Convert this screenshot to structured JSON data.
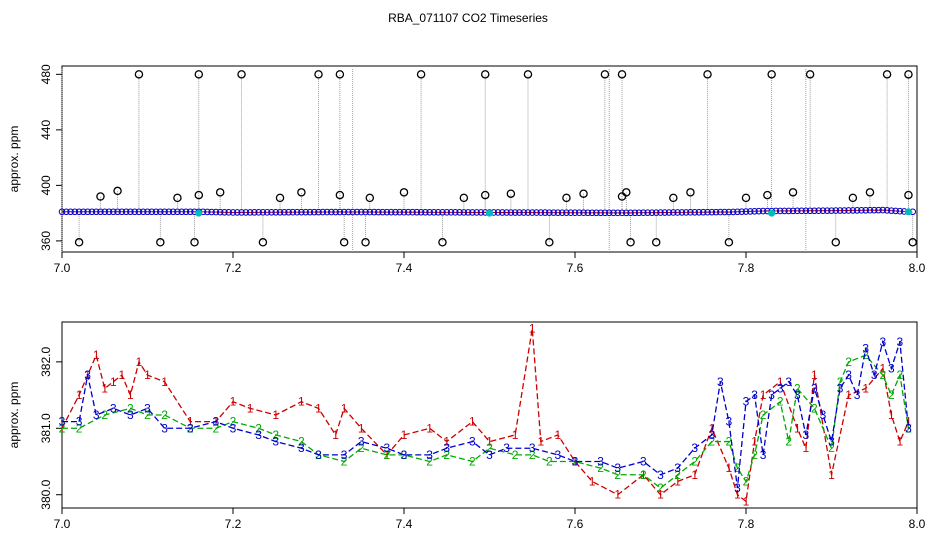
{
  "chart_data": [
    {
      "type": "scatter",
      "title": "RBA_071107  CO2 Timeseries",
      "xlabel": "",
      "ylabel": "approx. ppm",
      "xlim": [
        7.0,
        8.0
      ],
      "ylim": [
        352,
        486
      ],
      "xticks": [
        "7.0",
        "7.2",
        "7.4",
        "7.6",
        "7.8",
        "8.0"
      ],
      "yticks": [
        "360",
        "400",
        "440",
        "480"
      ],
      "grid": false,
      "legend": "none",
      "baseline": {
        "x": [
          7.0,
          7.1,
          7.16,
          7.2,
          7.33,
          7.5,
          7.66,
          7.78,
          7.82,
          7.9,
          7.96,
          7.99
        ],
        "y": [
          381.0,
          381.0,
          381.0,
          380.5,
          380.8,
          380.5,
          380.2,
          380.8,
          381.5,
          381.8,
          382.2,
          381.0
        ]
      },
      "cyan_points": {
        "x": [
          7.16,
          7.5,
          7.83,
          7.99
        ],
        "y": [
          380.0,
          380.0,
          380.0,
          381.0
        ]
      },
      "outliers_high": {
        "x": [
          7.09,
          7.16,
          7.21,
          7.3,
          7.325,
          7.42,
          7.495,
          7.545,
          7.635,
          7.655,
          7.755,
          7.83,
          7.875,
          7.965,
          7.99
        ],
        "y": [
          480,
          480,
          480,
          480,
          480,
          480,
          480,
          480,
          480,
          480,
          480,
          480,
          480,
          480,
          480
        ]
      },
      "outliers_low": {
        "x": [
          7.02,
          7.115,
          7.155,
          7.235,
          7.33,
          7.355,
          7.445,
          7.57,
          7.665,
          7.695,
          7.78,
          7.905,
          7.995
        ],
        "y": [
          359,
          359,
          359,
          359,
          359,
          359,
          359,
          359,
          359,
          359,
          359,
          359,
          359
        ]
      },
      "outliers_mid": {
        "x": [
          7.045,
          7.065,
          7.135,
          7.16,
          7.185,
          7.255,
          7.28,
          7.325,
          7.36,
          7.4,
          7.47,
          7.495,
          7.525,
          7.59,
          7.61,
          7.655,
          7.66,
          7.715,
          7.735,
          7.8,
          7.825,
          7.855,
          7.925,
          7.945,
          7.99
        ],
        "y": [
          392,
          396,
          391,
          393,
          395,
          391,
          395,
          393,
          391,
          395,
          391,
          393,
          394,
          391,
          394,
          392,
          395,
          391,
          395,
          391,
          393,
          395,
          391,
          395,
          393
        ]
      },
      "colors": {
        "outlier": "#000000",
        "baseline": "#0000cc",
        "red": "#cc0000",
        "cyan": "#00bbbb",
        "green": "#00aa00",
        "spike": "#888888"
      }
    },
    {
      "type": "line",
      "title": "",
      "xlabel": "",
      "ylabel": "approx. ppm",
      "xlim": [
        7.0,
        8.0
      ],
      "ylim": [
        379.8,
        382.6
      ],
      "xticks": [
        "7.0",
        "7.2",
        "7.4",
        "7.6",
        "7.8",
        "8.0"
      ],
      "yticks": [
        "380.0",
        "381.0",
        "382.0"
      ],
      "grid": false,
      "legend": "none",
      "series": [
        {
          "marker": "1",
          "color": "#cc0000",
          "x": [
            7.0,
            7.02,
            7.03,
            7.04,
            7.05,
            7.06,
            7.07,
            7.08,
            7.09,
            7.1,
            7.12,
            7.15,
            7.18,
            7.2,
            7.22,
            7.25,
            7.28,
            7.3,
            7.32,
            7.33,
            7.35,
            7.38,
            7.4,
            7.43,
            7.45,
            7.48,
            7.5,
            7.53,
            7.55,
            7.56,
            7.58,
            7.6,
            7.62,
            7.65,
            7.68,
            7.7,
            7.72,
            7.74,
            7.76,
            7.78,
            7.79,
            7.8,
            7.81,
            7.82,
            7.84,
            7.86,
            7.87,
            7.88,
            7.9,
            7.92,
            7.94,
            7.96,
            7.97,
            7.98,
            7.99
          ],
          "y": [
            381.0,
            381.5,
            381.8,
            382.1,
            381.6,
            381.7,
            381.8,
            381.5,
            382.0,
            381.8,
            381.7,
            381.1,
            381.1,
            381.4,
            381.3,
            381.2,
            381.4,
            381.3,
            380.9,
            381.3,
            381.0,
            380.6,
            380.9,
            381.0,
            380.8,
            381.1,
            380.8,
            380.9,
            382.5,
            380.8,
            380.9,
            380.5,
            380.2,
            380.0,
            380.3,
            380.0,
            380.2,
            380.3,
            381.0,
            380.4,
            380.0,
            379.9,
            380.8,
            381.5,
            381.7,
            381.0,
            380.7,
            381.8,
            380.3,
            381.5,
            381.6,
            381.9,
            381.2,
            380.8,
            381.1
          ]
        },
        {
          "marker": "2",
          "color": "#00aa00",
          "x": [
            7.0,
            7.02,
            7.05,
            7.08,
            7.1,
            7.12,
            7.15,
            7.18,
            7.2,
            7.23,
            7.25,
            7.28,
            7.3,
            7.33,
            7.35,
            7.38,
            7.4,
            7.43,
            7.45,
            7.48,
            7.5,
            7.53,
            7.55,
            7.57,
            7.6,
            7.63,
            7.65,
            7.68,
            7.7,
            7.72,
            7.74,
            7.76,
            7.78,
            7.79,
            7.8,
            7.81,
            7.82,
            7.84,
            7.85,
            7.86,
            7.88,
            7.9,
            7.91,
            7.92,
            7.94,
            7.96,
            7.97,
            7.98,
            7.99
          ],
          "y": [
            381.0,
            381.0,
            381.2,
            381.3,
            381.2,
            381.2,
            381.0,
            381.0,
            381.1,
            381.0,
            380.9,
            380.8,
            380.6,
            380.5,
            380.7,
            380.6,
            380.6,
            380.5,
            380.6,
            380.5,
            380.7,
            380.6,
            380.6,
            380.5,
            380.5,
            380.4,
            380.3,
            380.3,
            380.1,
            380.3,
            380.5,
            380.8,
            380.8,
            380.4,
            380.2,
            380.6,
            381.2,
            381.4,
            380.8,
            381.6,
            381.3,
            380.7,
            381.7,
            382.0,
            382.1,
            381.8,
            381.5,
            381.8,
            381.0
          ]
        },
        {
          "marker": "3",
          "color": "#0000cc",
          "x": [
            7.0,
            7.02,
            7.03,
            7.04,
            7.06,
            7.08,
            7.1,
            7.12,
            7.15,
            7.18,
            7.2,
            7.23,
            7.25,
            7.28,
            7.3,
            7.33,
            7.35,
            7.38,
            7.4,
            7.43,
            7.45,
            7.48,
            7.5,
            7.52,
            7.55,
            7.58,
            7.6,
            7.63,
            7.65,
            7.68,
            7.7,
            7.72,
            7.74,
            7.76,
            7.77,
            7.78,
            7.79,
            7.8,
            7.81,
            7.82,
            7.83,
            7.84,
            7.85,
            7.86,
            7.87,
            7.88,
            7.89,
            7.9,
            7.91,
            7.92,
            7.93,
            7.94,
            7.95,
            7.96,
            7.97,
            7.98,
            7.99
          ],
          "y": [
            381.1,
            381.1,
            381.8,
            381.2,
            381.3,
            381.2,
            381.3,
            381.0,
            381.0,
            381.1,
            381.0,
            380.9,
            380.8,
            380.7,
            380.6,
            380.6,
            380.8,
            380.7,
            380.6,
            380.6,
            380.7,
            380.8,
            380.6,
            380.7,
            380.7,
            380.6,
            380.5,
            380.5,
            380.4,
            380.5,
            380.3,
            380.4,
            380.7,
            380.9,
            381.7,
            381.1,
            380.1,
            381.4,
            381.5,
            380.6,
            381.5,
            381.6,
            381.7,
            381.5,
            380.9,
            381.6,
            381.2,
            380.8,
            381.6,
            381.8,
            381.5,
            382.2,
            381.8,
            382.3,
            381.9,
            382.3,
            381.0
          ]
        }
      ]
    }
  ]
}
